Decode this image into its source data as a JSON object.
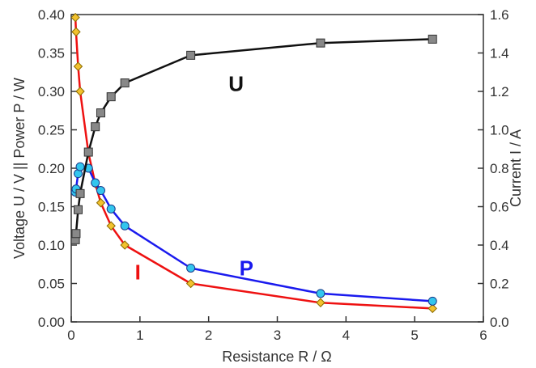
{
  "chart_data": {
    "type": "line",
    "xlabel": "Resistance R / Ω",
    "ylabel_left": "Voltage  U / V  ||  Power  P / W",
    "ylabel_right": "Current I / A",
    "xlim": [
      0,
      6
    ],
    "ylim_left": [
      0,
      0.4
    ],
    "ylim_right": [
      0,
      1.6
    ],
    "x_ticks": [
      "0",
      "1",
      "2",
      "3",
      "4",
      "5",
      "6"
    ],
    "y_left_ticks": [
      "0.00",
      "0.05",
      "0.10",
      "0.15",
      "0.20",
      "0.25",
      "0.30",
      "0.35",
      "0.40"
    ],
    "y_right_ticks": [
      "0.0",
      "0.2",
      "0.4",
      "0.6",
      "0.8",
      "1.0",
      "1.2",
      "1.4",
      "1.6"
    ],
    "grid": false,
    "series": [
      {
        "name": "U",
        "axis": "left",
        "color": "#111111",
        "marker": "square",
        "marker_color": "#888888",
        "x": [
          0.06,
          0.07,
          0.1,
          0.13,
          0.25,
          0.35,
          0.43,
          0.58,
          0.78,
          1.74,
          3.63,
          5.26
        ],
        "y": [
          0.107,
          0.115,
          0.146,
          0.167,
          0.221,
          0.254,
          0.272,
          0.293,
          0.311,
          0.347,
          0.363,
          0.368
        ]
      },
      {
        "name": "P",
        "axis": "left",
        "color": "#1a1aee",
        "marker": "circle",
        "marker_color": "#33c6ee",
        "x": [
          0.06,
          0.07,
          0.1,
          0.13,
          0.25,
          0.35,
          0.43,
          0.58,
          0.78,
          1.74,
          3.63,
          5.26
        ],
        "y": [
          0.169,
          0.173,
          0.193,
          0.202,
          0.2,
          0.181,
          0.171,
          0.147,
          0.125,
          0.07,
          0.037,
          0.027
        ]
      },
      {
        "name": "I",
        "axis": "right",
        "color": "#ee1111",
        "marker": "diamond",
        "marker_color": "#f2c22e",
        "x": [
          0.06,
          0.07,
          0.1,
          0.13,
          0.25,
          0.35,
          0.43,
          0.58,
          0.78,
          1.74,
          3.63,
          5.26
        ],
        "y": [
          1.585,
          1.51,
          1.33,
          1.2,
          0.88,
          0.72,
          0.62,
          0.5,
          0.4,
          0.2,
          0.1,
          0.07
        ]
      }
    ],
    "annotations": [
      {
        "text": "U",
        "series": "U",
        "color": "#111111",
        "x": 2.4,
        "y_axis": "left",
        "y": 0.31
      },
      {
        "text": "P",
        "series": "P",
        "color": "#1a1aee",
        "x": 2.55,
        "y_axis": "left",
        "y": 0.07
      },
      {
        "text": "I",
        "series": "I",
        "color": "#ee1111",
        "x": 0.97,
        "y_axis": "left",
        "y": 0.065
      }
    ]
  }
}
